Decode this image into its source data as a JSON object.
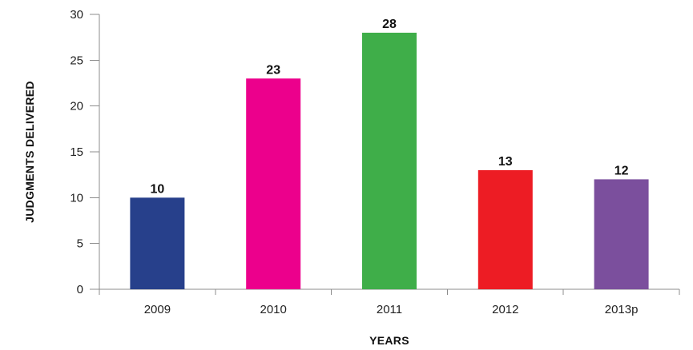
{
  "chart_data": {
    "type": "bar",
    "categories": [
      "2009",
      "2010",
      "2011",
      "2012",
      "2013p"
    ],
    "values": [
      10,
      23,
      28,
      13,
      12
    ],
    "data_labels": [
      "10",
      "23",
      "28",
      "13",
      "12"
    ],
    "bar_colors": [
      "#27408b",
      "#ec008c",
      "#3fae49",
      "#ed1c24",
      "#7b4f9d"
    ],
    "xlabel": "YEARS",
    "ylabel": "JUDGMENTS DELIVERED",
    "ylim": [
      0,
      30
    ],
    "yticks": [
      0,
      5,
      10,
      15,
      20,
      25,
      30
    ],
    "ytick_labels": [
      "0",
      "5",
      "10",
      "15",
      "20",
      "25",
      "30"
    ],
    "grid": false,
    "legend": "none"
  }
}
